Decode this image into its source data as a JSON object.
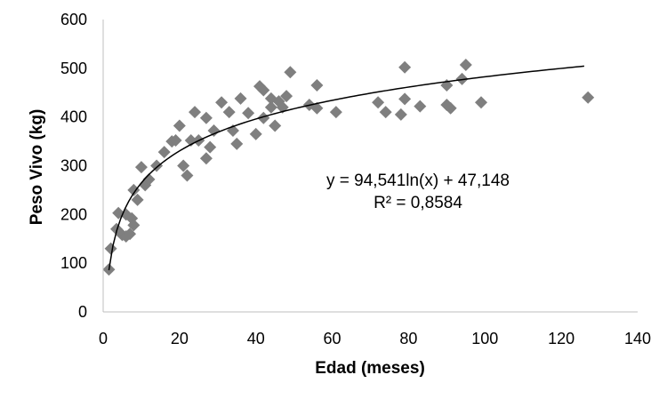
{
  "chart_data": {
    "type": "scatter",
    "xlabel": "Edad (meses)",
    "ylabel": "Peso Vivo (kg)",
    "xlim": [
      0,
      140
    ],
    "ylim": [
      0,
      600
    ],
    "x_ticks": [
      "0",
      "20",
      "40",
      "60",
      "80",
      "100",
      "120",
      "140"
    ],
    "y_ticks": [
      "0",
      "100",
      "200",
      "300",
      "400",
      "500",
      "600"
    ],
    "grid": false,
    "legend": "none",
    "marker_color": "#7f7f7f",
    "trendline_color": "#000000",
    "points": [
      [
        1.5,
        87
      ],
      [
        2,
        130
      ],
      [
        3.5,
        170
      ],
      [
        4,
        203
      ],
      [
        5,
        158
      ],
      [
        6,
        155
      ],
      [
        6,
        200
      ],
      [
        7,
        160
      ],
      [
        7.5,
        192
      ],
      [
        8,
        178
      ],
      [
        8,
        250
      ],
      [
        9,
        230
      ],
      [
        10,
        297
      ],
      [
        11,
        260
      ],
      [
        12,
        272
      ],
      [
        14,
        300
      ],
      [
        16,
        328
      ],
      [
        18,
        350
      ],
      [
        19,
        352
      ],
      [
        20,
        382
      ],
      [
        21,
        300
      ],
      [
        22,
        280
      ],
      [
        23,
        352
      ],
      [
        24,
        410
      ],
      [
        25,
        352
      ],
      [
        27,
        398
      ],
      [
        27,
        315
      ],
      [
        28,
        338
      ],
      [
        29,
        372
      ],
      [
        31,
        430
      ],
      [
        33,
        410
      ],
      [
        34,
        372
      ],
      [
        35,
        345
      ],
      [
        36,
        438
      ],
      [
        38,
        408
      ],
      [
        40,
        365
      ],
      [
        41,
        463
      ],
      [
        42,
        455
      ],
      [
        42,
        398
      ],
      [
        44,
        420
      ],
      [
        44,
        438
      ],
      [
        45,
        382
      ],
      [
        46,
        432
      ],
      [
        47,
        420
      ],
      [
        48,
        443
      ],
      [
        49,
        492
      ],
      [
        54,
        425
      ],
      [
        56,
        418
      ],
      [
        56,
        465
      ],
      [
        61,
        410
      ],
      [
        72,
        430
      ],
      [
        74,
        410
      ],
      [
        78,
        405
      ],
      [
        79,
        437
      ],
      [
        79,
        502
      ],
      [
        83,
        422
      ],
      [
        90,
        465
      ],
      [
        90,
        425
      ],
      [
        91,
        418
      ],
      [
        94,
        478
      ],
      [
        95,
        507
      ],
      [
        99,
        430
      ],
      [
        127,
        440
      ]
    ],
    "trendline": {
      "type": "logarithmic",
      "a": 94.541,
      "b": 47.148,
      "x_start": 1.5,
      "x_end": 126
    },
    "annotation": {
      "equation": "y = 94,541ln(x) + 47,148",
      "r_squared": "R² = 0,8584"
    }
  }
}
